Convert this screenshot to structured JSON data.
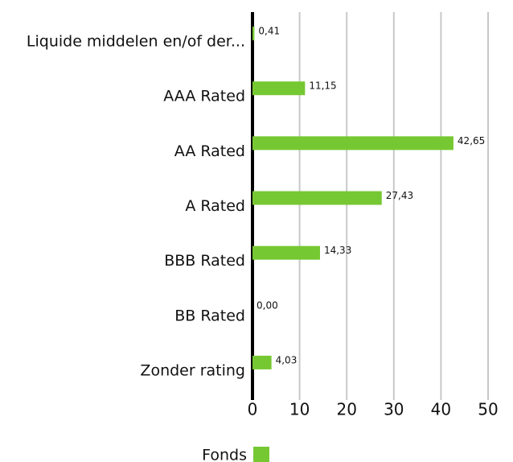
{
  "chart_data": {
    "type": "bar",
    "orientation": "horizontal",
    "categories": [
      "Liquide middelen en/of der...",
      "AAA Rated",
      "AA Rated",
      "A Rated",
      "BBB Rated",
      "BB Rated",
      "Zonder rating"
    ],
    "series": [
      {
        "name": "Fonds",
        "color": "#76c832",
        "values": [
          0.41,
          11.15,
          42.65,
          27.43,
          14.33,
          0.0,
          4.03
        ],
        "value_labels": [
          "0,41",
          "11,15",
          "42,65",
          "27,43",
          "14,33",
          "0,00",
          "4,03"
        ]
      }
    ],
    "xlim": [
      0,
      50
    ],
    "xticks": [
      0,
      10,
      20,
      30,
      40,
      50
    ],
    "grid": true,
    "legend": "bottom"
  }
}
